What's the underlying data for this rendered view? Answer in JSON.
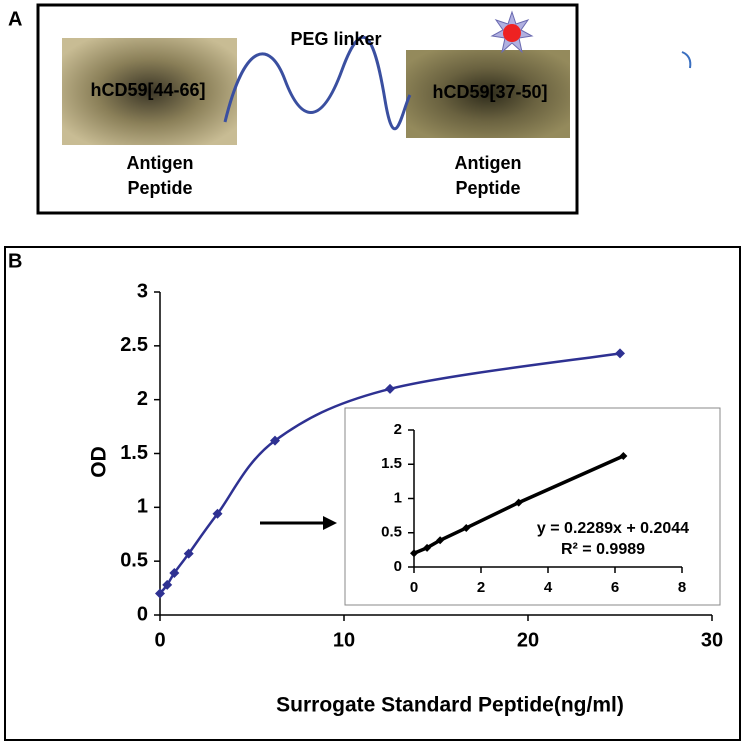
{
  "labels": {
    "a": "A",
    "b": "B"
  },
  "diagram": {
    "peptide_left": "hCD59[44-66]",
    "peptide_right": "hCD59[37-50]",
    "linker": "PEG linker",
    "caption_left": [
      "Antigen",
      "Peptide"
    ],
    "caption_right": [
      "Antigen",
      "Peptide"
    ]
  },
  "chart_data": [
    {
      "type": "line",
      "xlabel": "Surrogate Standard Peptide(ng/ml)",
      "ylabel": "OD",
      "smooth": true,
      "marker": "diamond",
      "series": [
        {
          "color": "#2e3192",
          "x": [
            0,
            0.39,
            0.78,
            1.56,
            3.125,
            6.25,
            12.5,
            25
          ],
          "values": [
            0.2,
            0.28,
            0.39,
            0.57,
            0.94,
            1.62,
            2.1,
            2.43
          ]
        }
      ],
      "xlim": [
        0,
        30
      ],
      "xticks": [
        0,
        10,
        20,
        30
      ],
      "ylim": [
        0,
        3
      ],
      "yticks": [
        0,
        0.5,
        1,
        1.5,
        2,
        2.5,
        3
      ]
    },
    {
      "type": "line",
      "smooth": false,
      "marker": "diamond",
      "series": [
        {
          "color": "#000000",
          "x": [
            0,
            0.39,
            0.78,
            1.56,
            3.125,
            6.25
          ],
          "values": [
            0.2,
            0.28,
            0.39,
            0.57,
            0.94,
            1.62
          ]
        }
      ],
      "annotations": [
        "y = 0.2289x + 0.2044",
        "R² = 0.9989"
      ],
      "xlim": [
        0,
        8
      ],
      "xticks": [
        0,
        2,
        4,
        6,
        8
      ],
      "ylim": [
        0,
        2
      ],
      "yticks": [
        0,
        0.5,
        1,
        1.5,
        2
      ]
    }
  ]
}
